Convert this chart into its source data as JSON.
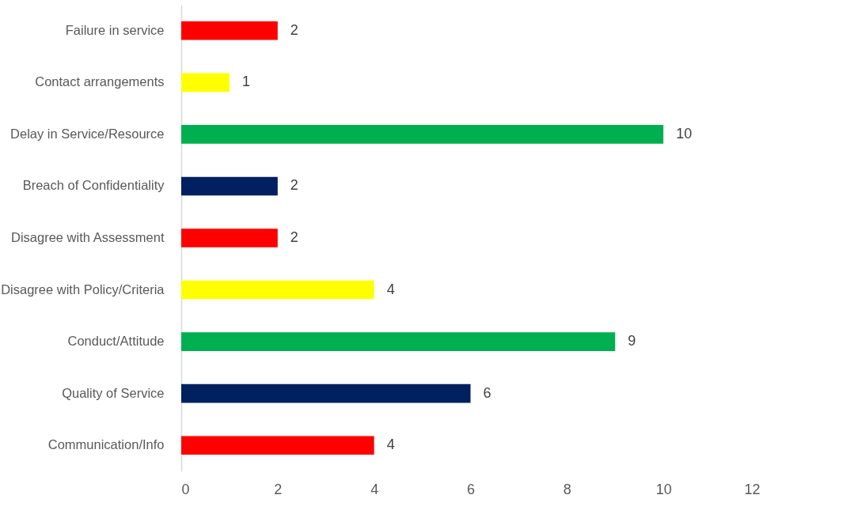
{
  "chart_data": {
    "type": "bar",
    "orientation": "horizontal",
    "categories": [
      "Failure in service",
      "Contact arrangements",
      "Delay in Service/Resource",
      "Breach of Confidentiality",
      "Disagree with Assessment",
      "Disagree with Policy/Criteria",
      "Conduct/Attitude",
      "Quality of Service",
      "Communication/Info"
    ],
    "values": [
      2,
      1,
      10,
      2,
      2,
      4,
      9,
      6,
      4
    ],
    "colors": [
      "#ff0000",
      "#ffff00",
      "#00b050",
      "#002060",
      "#ff0000",
      "#ffff00",
      "#00b050",
      "#002060",
      "#ff0000"
    ],
    "xlim": [
      0,
      12
    ],
    "xticks": [
      0,
      2,
      4,
      6,
      8,
      10,
      12
    ],
    "grid": false,
    "data_labels": true
  }
}
